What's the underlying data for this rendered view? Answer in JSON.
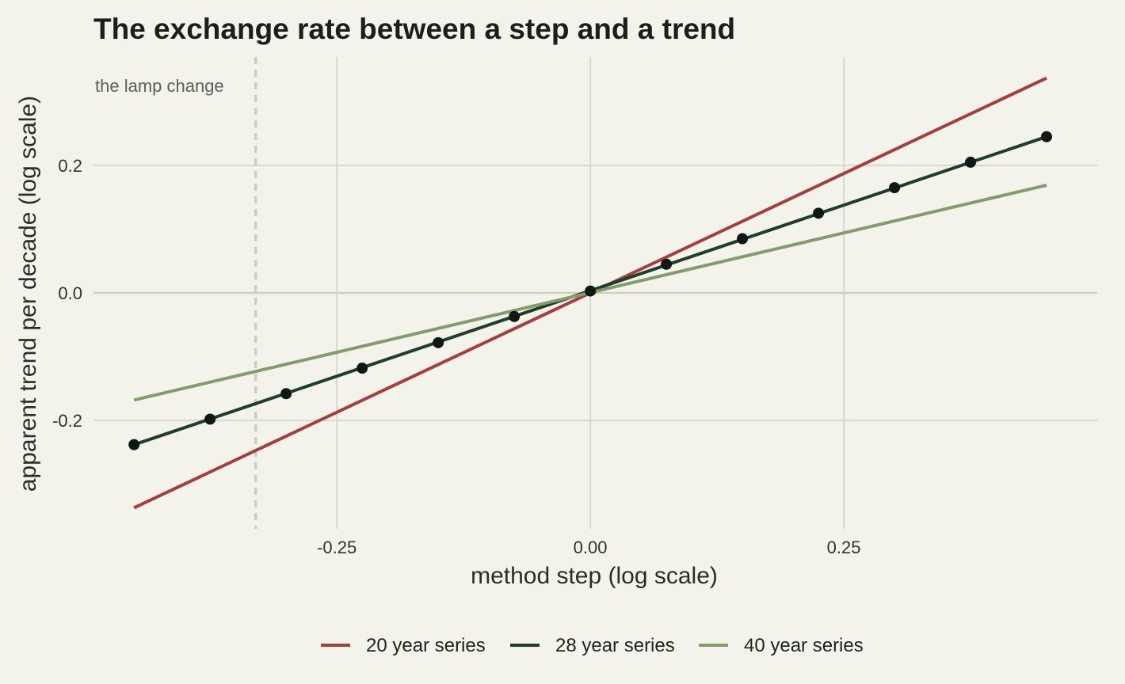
{
  "chart_data": {
    "type": "line",
    "title": "The exchange rate between a step and a trend",
    "xlabel": "method step (log scale)",
    "ylabel": "apparent trend per decade (log scale)",
    "xlim": [
      -0.49,
      0.5
    ],
    "ylim": [
      -0.37,
      0.37
    ],
    "x_ticks": [
      -0.25,
      0.0,
      0.25
    ],
    "x_tick_labels": [
      "-0.25",
      "0.00",
      "0.25"
    ],
    "y_ticks": [
      -0.2,
      0.0,
      0.2
    ],
    "y_tick_labels": [
      "-0.2",
      "0.0",
      "0.2"
    ],
    "grid": true,
    "legend_position": "bottom",
    "annotation": {
      "type": "vertical-dashed-line",
      "x": -0.33,
      "label": "the lamp change"
    },
    "series": [
      {
        "name": "20 year series",
        "color": "#a33f3f",
        "x": [
          -0.45,
          0.45
        ],
        "y": [
          -0.337,
          0.337
        ]
      },
      {
        "name": "28 year series",
        "color": "#1f3d2b",
        "x": [
          -0.45,
          0.45
        ],
        "y": [
          -0.238,
          0.245
        ],
        "points": {
          "x": [
            -0.45,
            -0.375,
            -0.3,
            -0.225,
            -0.15,
            -0.075,
            0.0,
            0.075,
            0.15,
            0.225,
            0.3,
            0.375,
            0.45
          ],
          "y": [
            -0.238,
            -0.198,
            -0.158,
            -0.118,
            -0.078,
            -0.037,
            0.003,
            0.045,
            0.085,
            0.125,
            0.165,
            0.205,
            0.245
          ]
        }
      },
      {
        "name": "40 year series",
        "color": "#849b6c",
        "x": [
          -0.45,
          0.45
        ],
        "y": [
          -0.168,
          0.169
        ]
      }
    ]
  },
  "colors": {
    "background": "#f3f2eb",
    "grid_major": "#d9d8cf",
    "zero_line": "#cfcfc2",
    "annotation_line": "#cfcdc1",
    "points": "#111714"
  }
}
